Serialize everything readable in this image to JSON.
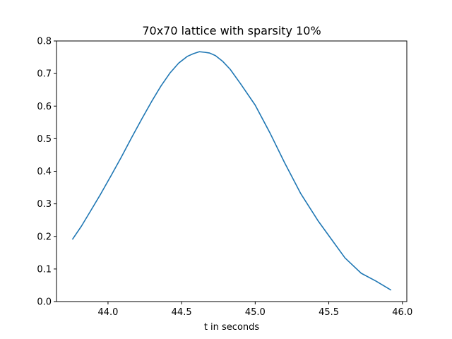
{
  "chart_data": {
    "type": "line",
    "title": "70x70 lattice with sparsity 10%",
    "xlabel": "t in seconds",
    "ylabel": "",
    "xlim": [
      43.65,
      46.03
    ],
    "ylim": [
      0.0,
      0.8
    ],
    "xticks": [
      44.0,
      44.5,
      45.0,
      45.5,
      46.0
    ],
    "xtick_labels": [
      "44.0",
      "44.5",
      "45.0",
      "45.5",
      "46.0"
    ],
    "yticks": [
      0.0,
      0.1,
      0.2,
      0.3,
      0.4,
      0.5,
      0.6,
      0.7,
      0.8
    ],
    "ytick_labels": [
      "0.0",
      "0.1",
      "0.2",
      "0.3",
      "0.4",
      "0.5",
      "0.6",
      "0.7",
      "0.8"
    ],
    "grid": false,
    "series": [
      {
        "color": "#1f77b4",
        "x": [
          43.76,
          43.82,
          43.88,
          43.95,
          44.02,
          44.09,
          44.16,
          44.23,
          44.3,
          44.36,
          44.42,
          44.48,
          44.54,
          44.58,
          44.62,
          44.66,
          44.69,
          44.73,
          44.78,
          44.83,
          44.9,
          45.0,
          45.1,
          45.2,
          45.31,
          45.43,
          45.52,
          45.61,
          45.72,
          45.82,
          45.92
        ],
        "y": [
          0.192,
          0.232,
          0.277,
          0.33,
          0.386,
          0.443,
          0.503,
          0.561,
          0.617,
          0.662,
          0.701,
          0.732,
          0.753,
          0.761,
          0.767,
          0.765,
          0.763,
          0.755,
          0.737,
          0.713,
          0.669,
          0.603,
          0.518,
          0.426,
          0.331,
          0.246,
          0.19,
          0.134,
          0.087,
          0.063,
          0.036
        ]
      }
    ]
  }
}
